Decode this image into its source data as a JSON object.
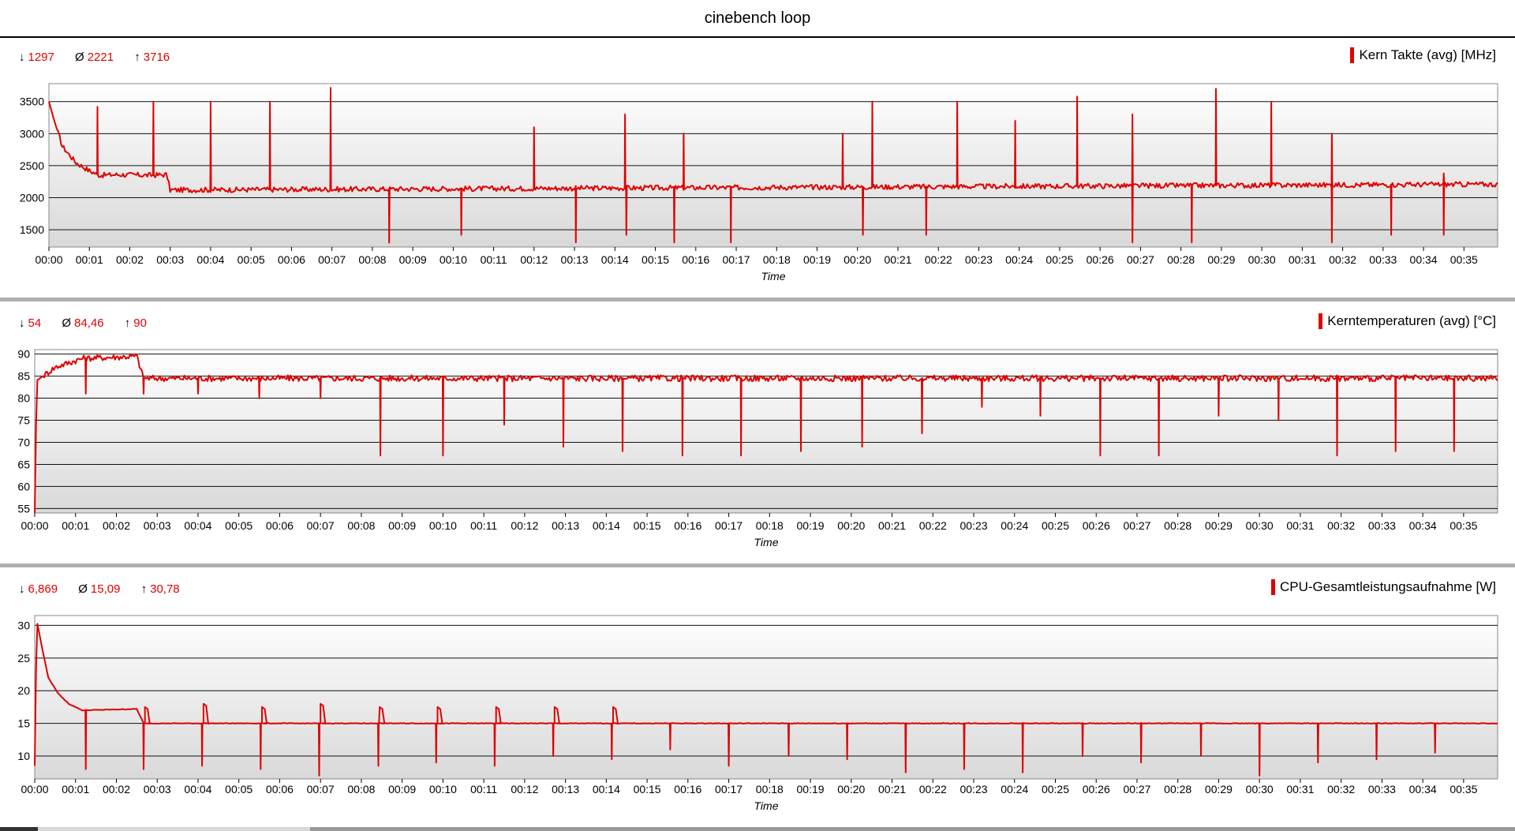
{
  "window_title": "cinebench loop",
  "panels": [
    {
      "stats": {
        "min": "1297",
        "avg": "2221",
        "max": "3716"
      },
      "legend": "Kern Takte (avg) [MHz]"
    },
    {
      "stats": {
        "min": "54",
        "avg": "84,46",
        "max": "90"
      },
      "legend": "Kerntemperaturen (avg) [°C]"
    },
    {
      "stats": {
        "min": "6,869",
        "avg": "15,09",
        "max": "30,78"
      },
      "legend": "CPU-Gesamtleistungsaufnahme [W]"
    }
  ],
  "stat_symbols": {
    "min": "↓",
    "avg": "Ø",
    "max": "↑"
  },
  "chart_data": [
    {
      "type": "line",
      "title": "Kern Takte (avg) [MHz]",
      "xlabel": "Time",
      "ylabel": "",
      "x_ticks": [
        "00:00",
        "00:01",
        "00:02",
        "00:03",
        "00:04",
        "00:05",
        "00:06",
        "00:07",
        "00:08",
        "00:09",
        "00:10",
        "00:11",
        "00:12",
        "00:13",
        "00:14",
        "00:15",
        "00:16",
        "00:17",
        "00:18",
        "00:19",
        "00:20",
        "00:21",
        "00:22",
        "00:23",
        "00:24",
        "00:25",
        "00:26",
        "00:27",
        "00:28",
        "00:29",
        "00:30",
        "00:31",
        "00:32",
        "00:33",
        "00:34",
        "00:35"
      ],
      "y_ticks": [
        1500,
        2000,
        2500,
        3000,
        3500
      ],
      "ylim": [
        1230,
        3780
      ],
      "xlim_seconds": [
        0,
        2150
      ],
      "grid": true,
      "series": [
        {
          "color": "#e00000",
          "baseline_segments": [
            [
              0,
              3500
            ],
            [
              8,
              3200
            ],
            [
              20,
              2800
            ],
            [
              40,
              2550
            ],
            [
              60,
              2420
            ],
            [
              75,
              2350
            ],
            [
              100,
              2360
            ],
            [
              150,
              2350
            ],
            [
              175,
              2360
            ],
            [
              180,
              2120
            ],
            [
              2150,
              2210
            ]
          ],
          "spikes_up": [
            [
              72,
              3420
            ],
            [
              155,
              3500
            ],
            [
              240,
              3500
            ],
            [
              328,
              3500
            ],
            [
              418,
              3716
            ],
            [
              720,
              3100
            ],
            [
              855,
              3300
            ],
            [
              942,
              3000
            ],
            [
              1178,
              3000
            ],
            [
              1222,
              3500
            ],
            [
              1348,
              3500
            ],
            [
              1434,
              3200
            ],
            [
              1526,
              3580
            ],
            [
              1608,
              3300
            ],
            [
              1732,
              3700
            ],
            [
              1814,
              3500
            ],
            [
              1904,
              3000
            ],
            [
              2070,
              2380
            ]
          ],
          "spikes_down": [
            [
              505,
              1297
            ],
            [
              612,
              1420
            ],
            [
              782,
              1300
            ],
            [
              857,
              1420
            ],
            [
              928,
              1300
            ],
            [
              1012,
              1300
            ],
            [
              1208,
              1420
            ],
            [
              1302,
              1420
            ],
            [
              1608,
              1300
            ],
            [
              1696,
              1300
            ],
            [
              1904,
              1300
            ],
            [
              1992,
              1420
            ],
            [
              2070,
              1420
            ]
          ]
        }
      ]
    },
    {
      "type": "line",
      "title": "Kerntemperaturen (avg) [°C]",
      "xlabel": "Time",
      "ylabel": "",
      "x_ticks": [
        "00:00",
        "00:01",
        "00:02",
        "00:03",
        "00:04",
        "00:05",
        "00:06",
        "00:07",
        "00:08",
        "00:09",
        "00:10",
        "00:11",
        "00:12",
        "00:13",
        "00:14",
        "00:15",
        "00:16",
        "00:17",
        "00:18",
        "00:19",
        "00:20",
        "00:21",
        "00:22",
        "00:23",
        "00:24",
        "00:25",
        "00:26",
        "00:27",
        "00:28",
        "00:29",
        "00:30",
        "00:31",
        "00:32",
        "00:33",
        "00:34",
        "00:35"
      ],
      "y_ticks": [
        55,
        60,
        65,
        70,
        75,
        80,
        85,
        90
      ],
      "ylim": [
        54,
        91
      ],
      "xlim_seconds": [
        0,
        2150
      ],
      "grid": true,
      "series": [
        {
          "color": "#e00000",
          "baseline_segments": [
            [
              0,
              54
            ],
            [
              3,
              84
            ],
            [
              30,
              87
            ],
            [
              70,
              89
            ],
            [
              150,
              89.5
            ],
            [
              160,
              84.5
            ],
            [
              2150,
              84.5
            ]
          ],
          "spikes_down": [
            [
              75,
              81
            ],
            [
              160,
              81
            ],
            [
              240,
              81
            ],
            [
              330,
              80
            ],
            [
              420,
              80
            ],
            [
              508,
              67
            ],
            [
              600,
              67
            ],
            [
              690,
              74
            ],
            [
              777,
              69
            ],
            [
              864,
              68
            ],
            [
              952,
              67
            ],
            [
              1038,
              67
            ],
            [
              1126,
              68
            ],
            [
              1216,
              69
            ],
            [
              1304,
              72
            ],
            [
              1392,
              78
            ],
            [
              1478,
              76
            ],
            [
              1566,
              67
            ],
            [
              1652,
              67
            ],
            [
              1740,
              76
            ],
            [
              1828,
              75
            ],
            [
              1914,
              67
            ],
            [
              2000,
              68
            ],
            [
              2086,
              68
            ]
          ]
        }
      ]
    },
    {
      "type": "line",
      "title": "CPU-Gesamtleistungsaufnahme [W]",
      "xlabel": "Time",
      "ylabel": "",
      "x_ticks": [
        "00:00",
        "00:01",
        "00:02",
        "00:03",
        "00:04",
        "00:05",
        "00:06",
        "00:07",
        "00:08",
        "00:09",
        "00:10",
        "00:11",
        "00:12",
        "00:13",
        "00:14",
        "00:15",
        "00:16",
        "00:17",
        "00:18",
        "00:19",
        "00:20",
        "00:21",
        "00:22",
        "00:23",
        "00:24",
        "00:25",
        "00:26",
        "00:27",
        "00:28",
        "00:29",
        "00:30",
        "00:31",
        "00:32",
        "00:33",
        "00:34",
        "00:35"
      ],
      "y_ticks": [
        10,
        15,
        20,
        25,
        30
      ],
      "ylim": [
        6.5,
        31.5
      ],
      "xlim_seconds": [
        0,
        2150
      ],
      "grid": true,
      "series": [
        {
          "color": "#e00000",
          "baseline_segments": [
            [
              0,
              8.5
            ],
            [
              3,
              30.78
            ],
            [
              10,
              27
            ],
            [
              20,
              22
            ],
            [
              35,
              19.5
            ],
            [
              50,
              18
            ],
            [
              70,
              17
            ],
            [
              150,
              17.2
            ],
            [
              160,
              15
            ],
            [
              2150,
              15
            ]
          ],
          "spikes_down": [
            [
              75,
              8
            ],
            [
              160,
              8
            ],
            [
              246,
              8.5
            ],
            [
              332,
              8
            ],
            [
              418,
              7
            ],
            [
              505,
              8.5
            ],
            [
              590,
              9
            ],
            [
              676,
              8.5
            ],
            [
              762,
              10
            ],
            [
              848,
              9.5
            ],
            [
              934,
              11
            ],
            [
              1020,
              8.5
            ],
            [
              1108,
              10
            ],
            [
              1194,
              9.5
            ],
            [
              1280,
              7.5
            ],
            [
              1366,
              8
            ],
            [
              1452,
              7.5
            ],
            [
              1540,
              10
            ],
            [
              1626,
              9
            ],
            [
              1714,
              10
            ],
            [
              1800,
              7
            ],
            [
              1886,
              9
            ],
            [
              1972,
              9.5
            ],
            [
              2058,
              10.5
            ]
          ],
          "bumps_up": [
            [
              160,
              17.5
            ],
            [
              246,
              18
            ],
            [
              332,
              17.5
            ],
            [
              418,
              18
            ],
            [
              505,
              17.5
            ],
            [
              590,
              17.5
            ],
            [
              676,
              17.5
            ],
            [
              762,
              17.5
            ],
            [
              848,
              17.5
            ]
          ]
        }
      ]
    }
  ]
}
